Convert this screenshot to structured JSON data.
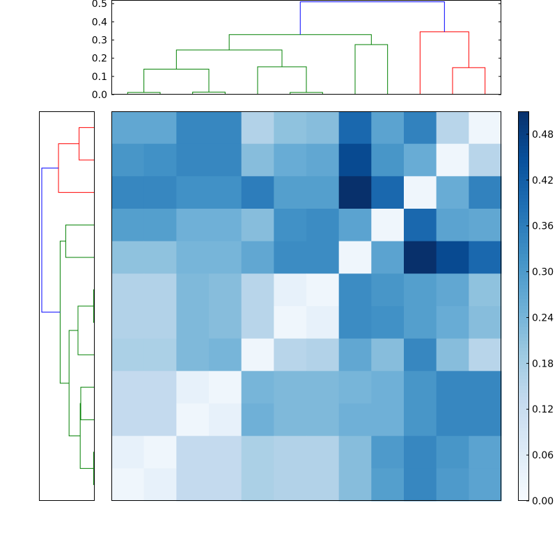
{
  "chart_data": [
    {
      "type": "dendrogram",
      "orientation": "top",
      "ylim": [
        0,
        0.52
      ],
      "yticks": [
        "0.0",
        "0.1",
        "0.2",
        "0.3",
        "0.4",
        "0.5"
      ],
      "leaves": 12,
      "links": [
        {
          "left": 0,
          "right": 1,
          "left_height": 0,
          "right_height": 0,
          "height": 0.012,
          "color": "#008000"
        },
        {
          "left": 2,
          "right": 3,
          "left_height": 0,
          "right_height": 0,
          "height": 0.014,
          "color": "#008000"
        },
        {
          "left": 0.5,
          "right": 2.5,
          "left_height": 0.012,
          "right_height": 0.014,
          "height": 0.14,
          "color": "#008000"
        },
        {
          "left": 5,
          "right": 6,
          "left_height": 0,
          "right_height": 0,
          "height": 0.012,
          "color": "#008000"
        },
        {
          "left": 4,
          "right": 5.5,
          "left_height": 0,
          "right_height": 0.012,
          "height": 0.153,
          "color": "#008000"
        },
        {
          "left": 1.5,
          "right": 4.75,
          "left_height": 0.14,
          "right_height": 0.153,
          "height": 0.245,
          "color": "#008000"
        },
        {
          "left": 7,
          "right": 8,
          "left_height": 0,
          "right_height": 0,
          "height": 0.275,
          "color": "#008000"
        },
        {
          "left": 3.125,
          "right": 7.5,
          "left_height": 0.245,
          "right_height": 0.275,
          "height": 0.33,
          "color": "#008000"
        },
        {
          "left": 10,
          "right": 11,
          "left_height": 0,
          "right_height": 0,
          "height": 0.148,
          "color": "#ff0000"
        },
        {
          "left": 9,
          "right": 10.5,
          "left_height": 0,
          "right_height": 0.148,
          "height": 0.345,
          "color": "#ff0000"
        },
        {
          "left": 5.3125,
          "right": 9.75,
          "left_height": 0.33,
          "right_height": 0.345,
          "height": 0.51,
          "color": "#0000ff"
        }
      ]
    },
    {
      "type": "dendrogram",
      "orientation": "left",
      "leaves": 12,
      "links": [
        {
          "left": 0,
          "right": 1,
          "left_height": 0,
          "right_height": 0,
          "height": 0.28,
          "color": "#ff0000"
        },
        {
          "left": 0.5,
          "right": 2,
          "left_height": 0.28,
          "right_height": 0,
          "height": 0.65,
          "color": "#ff0000"
        },
        {
          "left": 3,
          "right": 4,
          "left_height": 0,
          "right_height": 0,
          "height": 0.52,
          "color": "#008000"
        },
        {
          "left": 5,
          "right": 6,
          "left_height": 0,
          "right_height": 0,
          "height": 0.02,
          "color": "#008000"
        },
        {
          "left": 5.5,
          "right": 7,
          "left_height": 0.02,
          "right_height": 0,
          "height": 0.3,
          "color": "#008000"
        },
        {
          "left": 8,
          "right": 9,
          "left_height": 0,
          "right_height": 0,
          "height": 0.25,
          "color": "#008000"
        },
        {
          "left": 10,
          "right": 11,
          "left_height": 0,
          "right_height": 0,
          "height": 0.02,
          "color": "#008000"
        },
        {
          "left": 8.5,
          "right": 10.5,
          "left_height": 0.25,
          "right_height": 0.02,
          "height": 0.26,
          "color": "#008000"
        },
        {
          "left": 6.25,
          "right": 9.5,
          "left_height": 0.3,
          "right_height": 0.26,
          "height": 0.46,
          "color": "#008000"
        },
        {
          "left": 3.5,
          "right": 7.875,
          "left_height": 0.52,
          "right_height": 0.46,
          "height": 0.62,
          "color": "#008000"
        },
        {
          "left": 1.25,
          "right": 5.6875,
          "left_height": 0.65,
          "right_height": 0.62,
          "height": 0.95,
          "color": "#0000ff"
        }
      ]
    },
    {
      "type": "heatmap",
      "colormap": "Blues",
      "vmin": 0.0,
      "vmax": 0.51,
      "rows": 12,
      "cols": 12,
      "values": [
        [
          0.27,
          0.27,
          0.34,
          0.34,
          0.16,
          0.21,
          0.22,
          0.4,
          0.28,
          0.35,
          0.15,
          0.02
        ],
        [
          0.31,
          0.32,
          0.34,
          0.34,
          0.22,
          0.26,
          0.27,
          0.46,
          0.31,
          0.26,
          0.02,
          0.15
        ],
        [
          0.34,
          0.34,
          0.32,
          0.32,
          0.36,
          0.29,
          0.29,
          0.51,
          0.4,
          0.02,
          0.26,
          0.35
        ],
        [
          0.29,
          0.29,
          0.25,
          0.25,
          0.22,
          0.32,
          0.33,
          0.28,
          0.02,
          0.4,
          0.28,
          0.27
        ],
        [
          0.21,
          0.21,
          0.24,
          0.24,
          0.27,
          0.33,
          0.33,
          0.02,
          0.28,
          0.51,
          0.46,
          0.4
        ],
        [
          0.16,
          0.16,
          0.23,
          0.22,
          0.15,
          0.04,
          0.02,
          0.33,
          0.31,
          0.29,
          0.27,
          0.21
        ],
        [
          0.16,
          0.16,
          0.23,
          0.22,
          0.15,
          0.02,
          0.04,
          0.33,
          0.32,
          0.29,
          0.26,
          0.22
        ],
        [
          0.17,
          0.17,
          0.23,
          0.24,
          0.02,
          0.15,
          0.16,
          0.27,
          0.22,
          0.34,
          0.22,
          0.15
        ],
        [
          0.13,
          0.13,
          0.04,
          0.02,
          0.24,
          0.23,
          0.23,
          0.24,
          0.25,
          0.31,
          0.34,
          0.34
        ],
        [
          0.13,
          0.13,
          0.02,
          0.04,
          0.25,
          0.23,
          0.23,
          0.25,
          0.25,
          0.31,
          0.34,
          0.34
        ],
        [
          0.04,
          0.02,
          0.13,
          0.13,
          0.17,
          0.16,
          0.16,
          0.22,
          0.3,
          0.34,
          0.31,
          0.28
        ],
        [
          0.02,
          0.04,
          0.13,
          0.13,
          0.17,
          0.16,
          0.16,
          0.22,
          0.29,
          0.34,
          0.3,
          0.28
        ]
      ]
    },
    {
      "type": "colorbar",
      "vmin": 0.0,
      "vmax": 0.51,
      "ticks": [
        0.0,
        0.06,
        0.12,
        0.18,
        0.24,
        0.3,
        0.36,
        0.42,
        0.48
      ],
      "tick_labels": [
        "0.00",
        "0.06",
        "0.12",
        "0.18",
        "0.24",
        "0.30",
        "0.36",
        "0.42",
        "0.48"
      ]
    }
  ]
}
